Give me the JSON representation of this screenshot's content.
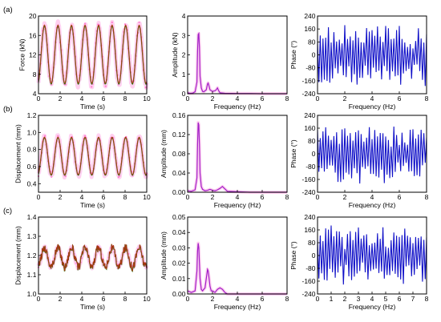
{
  "colors": {
    "measured": "#ff7fd0",
    "fitted": "#2e7a12",
    "fitted_overlay": "#cc2211",
    "amplitude": "#a020c8",
    "phase": "#1010c8",
    "band": "#ffd0f0"
  },
  "chart_data": [
    {
      "panel_label": "(a)",
      "type": "line",
      "xlabel": "Time (s)",
      "ylabel": "Force (kN)",
      "xlim": [
        0,
        10
      ],
      "ylim": [
        4,
        20
      ],
      "xticks": [
        "0",
        "2",
        "4",
        "6",
        "8",
        "10"
      ],
      "yticks": [
        "4",
        "8",
        "12",
        "16",
        "20"
      ],
      "signal": {
        "mean": 12,
        "amp": 6,
        "freq_hz": 0.8,
        "points_every_s": 0.1
      }
    },
    {
      "panel_label": "",
      "type": "line",
      "xlabel": "Frequency (Hz)",
      "ylabel": "Amplitude (kN)",
      "xlim": [
        0,
        8
      ],
      "ylim": [
        0,
        4
      ],
      "xticks": [
        "0",
        "2",
        "4",
        "6",
        "8"
      ],
      "yticks": [
        "0",
        "1",
        "2",
        "3",
        "4"
      ],
      "x": [
        0,
        0.2,
        0.4,
        0.6,
        0.75,
        0.8,
        0.85,
        0.9,
        0.95,
        1.0,
        1.1,
        1.2,
        1.3,
        1.5,
        1.6,
        1.65,
        1.7,
        1.8,
        2.0,
        2.2,
        2.3,
        2.4,
        2.5,
        2.6,
        3.0,
        4.0,
        5.0,
        6.0,
        7.0,
        8.0
      ],
      "y": [
        0.05,
        0.02,
        0.03,
        0.1,
        0.6,
        2.2,
        3.05,
        3.1,
        2.4,
        0.9,
        0.3,
        0.12,
        0.1,
        0.2,
        0.5,
        0.55,
        0.45,
        0.2,
        0.12,
        0.15,
        0.2,
        0.3,
        0.15,
        0.05,
        0.02,
        0.01,
        0.01,
        0.0,
        0.0,
        0.0
      ]
    },
    {
      "panel_label": "",
      "type": "line",
      "xlabel": "Frequency (Hz)",
      "ylabel": "Phase (°)",
      "xlim": [
        0,
        8
      ],
      "ylim": [
        -240,
        240
      ],
      "xticks": [
        "0",
        "2",
        "4",
        "6",
        "8"
      ],
      "yticks": [
        "-240",
        "-160",
        "-80",
        "0",
        "80",
        "160",
        "240"
      ],
      "seed": 3,
      "npoints": 80
    },
    {
      "panel_label": "(b)",
      "type": "line",
      "xlabel": "Time (s)",
      "ylabel": "Displacement (mm)",
      "xlim": [
        0,
        10
      ],
      "ylim": [
        0.3,
        1.2
      ],
      "xticks": [
        "0",
        "2",
        "4",
        "6",
        "8",
        "10"
      ],
      "yticks": [
        "0.4",
        "0.6",
        "0.8",
        "1.0",
        "1.2"
      ],
      "signal": {
        "mean": 0.72,
        "amp": 0.22,
        "freq_hz": 0.8,
        "points_every_s": 0.1
      }
    },
    {
      "panel_label": "",
      "type": "line",
      "xlabel": "Frequency (Hz)",
      "ylabel": "Amplitude (mm)",
      "xlim": [
        0,
        8
      ],
      "ylim": [
        0,
        0.16
      ],
      "xticks": [
        "0",
        "2",
        "4",
        "6",
        "8"
      ],
      "yticks": [
        "0.00",
        "0.04",
        "0.08",
        "0.12",
        "0.16"
      ],
      "x": [
        0,
        0.3,
        0.6,
        0.75,
        0.8,
        0.85,
        0.9,
        0.95,
        1.0,
        1.1,
        1.2,
        1.4,
        1.6,
        1.8,
        2.0,
        2.2,
        2.4,
        2.6,
        2.8,
        3.0,
        3.2,
        4.0,
        5.0,
        6.0,
        8.0
      ],
      "y": [
        0.003,
        0.002,
        0.005,
        0.03,
        0.1,
        0.145,
        0.14,
        0.1,
        0.04,
        0.012,
        0.006,
        0.003,
        0.004,
        0.006,
        0.004,
        0.003,
        0.005,
        0.008,
        0.012,
        0.007,
        0.002,
        0.001,
        0.0,
        0.0,
        0.0
      ]
    },
    {
      "panel_label": "",
      "type": "line",
      "xlabel": "Frequency (Hz)",
      "ylabel": "Phase (°)",
      "xlim": [
        0,
        8
      ],
      "ylim": [
        -240,
        240
      ],
      "xticks": [
        "0",
        "2",
        "4",
        "6",
        "8"
      ],
      "yticks": [
        "-240",
        "-160",
        "-80",
        "0",
        "80",
        "160",
        "240"
      ],
      "seed": 11,
      "npoints": 80
    },
    {
      "panel_label": "(c)",
      "type": "line",
      "xlabel": "Time (s)",
      "ylabel": "Displacement (mm)",
      "xlim": [
        0,
        10
      ],
      "ylim": [
        1.0,
        1.4
      ],
      "xticks": [
        "0",
        "2",
        "4",
        "6",
        "8",
        "10"
      ],
      "yticks": [
        "1.0",
        "1.1",
        "1.2",
        "1.3",
        "1.4"
      ],
      "signal": {
        "mean": 1.19,
        "amp": 0.05,
        "freq_hz": 0.8,
        "points_every_s": 0.1
      }
    },
    {
      "panel_label": "",
      "type": "line",
      "xlabel": "Frequency (Hz)",
      "ylabel": "Amplitude (mm)",
      "xlim": [
        0,
        8
      ],
      "ylim": [
        0,
        0.05
      ],
      "xticks": [
        "0",
        "2",
        "4",
        "6",
        "8"
      ],
      "yticks": [
        "0.00",
        "0.01",
        "0.02",
        "0.03",
        "0.04",
        "0.05"
      ],
      "x": [
        0,
        0.3,
        0.6,
        0.75,
        0.8,
        0.85,
        0.9,
        0.95,
        1.0,
        1.1,
        1.2,
        1.4,
        1.5,
        1.6,
        1.65,
        1.7,
        1.8,
        1.9,
        2.0,
        2.2,
        2.4,
        2.6,
        2.8,
        3.0,
        3.2,
        4.0,
        5.0,
        8.0
      ],
      "y": [
        0.002,
        0.001,
        0.002,
        0.015,
        0.028,
        0.033,
        0.03,
        0.02,
        0.01,
        0.003,
        0.002,
        0.004,
        0.01,
        0.016,
        0.015,
        0.012,
        0.005,
        0.002,
        0.002,
        0.001,
        0.003,
        0.004,
        0.003,
        0.001,
        0.0,
        0.0,
        0.0,
        0.0
      ]
    },
    {
      "panel_label": "",
      "type": "line",
      "xlabel": "Frequency (Hz)",
      "ylabel": "Phase (°)",
      "xlim": [
        0,
        8
      ],
      "ylim": [
        -240,
        240
      ],
      "xticks": [
        "0",
        "1",
        "2",
        "3",
        "4",
        "5",
        "6",
        "7",
        "8"
      ],
      "yticks": [
        "-240",
        "-160",
        "-80",
        "0",
        "80",
        "160",
        "240"
      ],
      "seed": 23,
      "npoints": 80
    }
  ]
}
